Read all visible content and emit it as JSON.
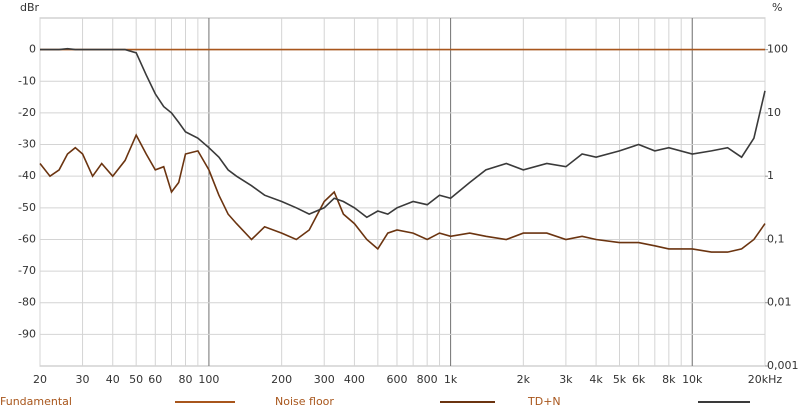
{
  "chart_data": {
    "type": "line",
    "y_label": "dBr",
    "y2_label": "%",
    "xscale": "log",
    "y2scale": "log",
    "grid": true,
    "legend": "bottom",
    "xlim": [
      20,
      20000
    ],
    "ylim": [
      -100,
      10
    ],
    "y2lim": [
      0.001,
      316.2
    ],
    "xticks": [
      20,
      30,
      40,
      50,
      60,
      80,
      100,
      200,
      300,
      400,
      600,
      800,
      {
        "value": 1000,
        "label": "1k"
      },
      {
        "value": 2000,
        "label": "2k"
      },
      {
        "value": 3000,
        "label": "3k"
      },
      {
        "value": 4000,
        "label": "4k"
      },
      {
        "value": 5000,
        "label": "5k"
      },
      {
        "value": 6000,
        "label": "6k"
      },
      {
        "value": 8000,
        "label": "8k"
      },
      {
        "value": 10000,
        "label": "10k"
      },
      {
        "value": 20000,
        "label": "20kHz"
      }
    ],
    "minor_xticks": [
      70,
      90,
      500,
      700,
      900,
      7000,
      9000
    ],
    "major_xticks": [
      100,
      1000,
      10000
    ],
    "yticks": [
      0,
      -10,
      -20,
      -30,
      -40,
      -50,
      -60,
      -70,
      -80,
      -90
    ],
    "y2ticks": [
      100,
      10,
      1,
      {
        "value": 0.1,
        "label": "0,1"
      },
      {
        "value": 0.01,
        "label": "0,01"
      },
      {
        "value": 0.001,
        "label": "0,001"
      }
    ],
    "x": [
      20,
      22,
      24,
      26,
      28,
      30,
      33,
      36,
      40,
      45,
      50,
      55,
      60,
      65,
      70,
      75,
      80,
      90,
      100,
      110,
      120,
      130,
      150,
      170,
      200,
      230,
      260,
      300,
      330,
      360,
      400,
      450,
      500,
      550,
      600,
      700,
      800,
      900,
      1000,
      1200,
      1400,
      1700,
      2000,
      2500,
      3000,
      3500,
      4000,
      5000,
      6000,
      7000,
      8000,
      10000,
      12000,
      14000,
      16000,
      18000,
      20000
    ],
    "series": [
      {
        "name": "Fundamental",
        "color": "#a8561c",
        "values": [
          0,
          0,
          0,
          0,
          0,
          0,
          0,
          0,
          0,
          0,
          0,
          0,
          0,
          0,
          0,
          0,
          0,
          0,
          0,
          0,
          0,
          0,
          0,
          0,
          0,
          0,
          0,
          0,
          0,
          0,
          0,
          0,
          0,
          0,
          0,
          0,
          0,
          0,
          0,
          0,
          0,
          0,
          0,
          0,
          0,
          0,
          0,
          0,
          0,
          0,
          0,
          0,
          0,
          0,
          0,
          0,
          0
        ]
      },
      {
        "name": "Noise floor",
        "color": "#6b3410",
        "values": [
          -36,
          -40,
          -38,
          -33,
          -31,
          -33,
          -40,
          -36,
          -40,
          -35,
          -27,
          -33,
          -38,
          -37,
          -45,
          -42,
          -33,
          -32,
          -38,
          -46,
          -52,
          -55,
          -60,
          -56,
          -58,
          -60,
          -57,
          -48,
          -45,
          -52,
          -55,
          -60,
          -63,
          -58,
          -57,
          -58,
          -60,
          -58,
          -59,
          -58,
          -59,
          -60,
          -58,
          -58,
          -60,
          -59,
          -60,
          -61,
          -61,
          -62,
          -63,
          -63,
          -64,
          -64,
          -63,
          -60,
          -55
        ]
      },
      {
        "name": "TD+N",
        "color": "#3a3a3a",
        "values": [
          0,
          0,
          0,
          0.3,
          0,
          0,
          0,
          0,
          0,
          0,
          -1,
          -8,
          -14,
          -18,
          -20,
          -23,
          -26,
          -28,
          -31,
          -34,
          -38,
          -40,
          -43,
          -46,
          -48,
          -50,
          -52,
          -50,
          -47,
          -48,
          -50,
          -53,
          -51,
          -52,
          -50,
          -48,
          -49,
          -46,
          -47,
          -42,
          -38,
          -36,
          -38,
          -36,
          -37,
          -33,
          -34,
          -32,
          -30,
          -32,
          -31,
          -33,
          -32,
          -31,
          -34,
          -28,
          -13
        ]
      }
    ]
  }
}
